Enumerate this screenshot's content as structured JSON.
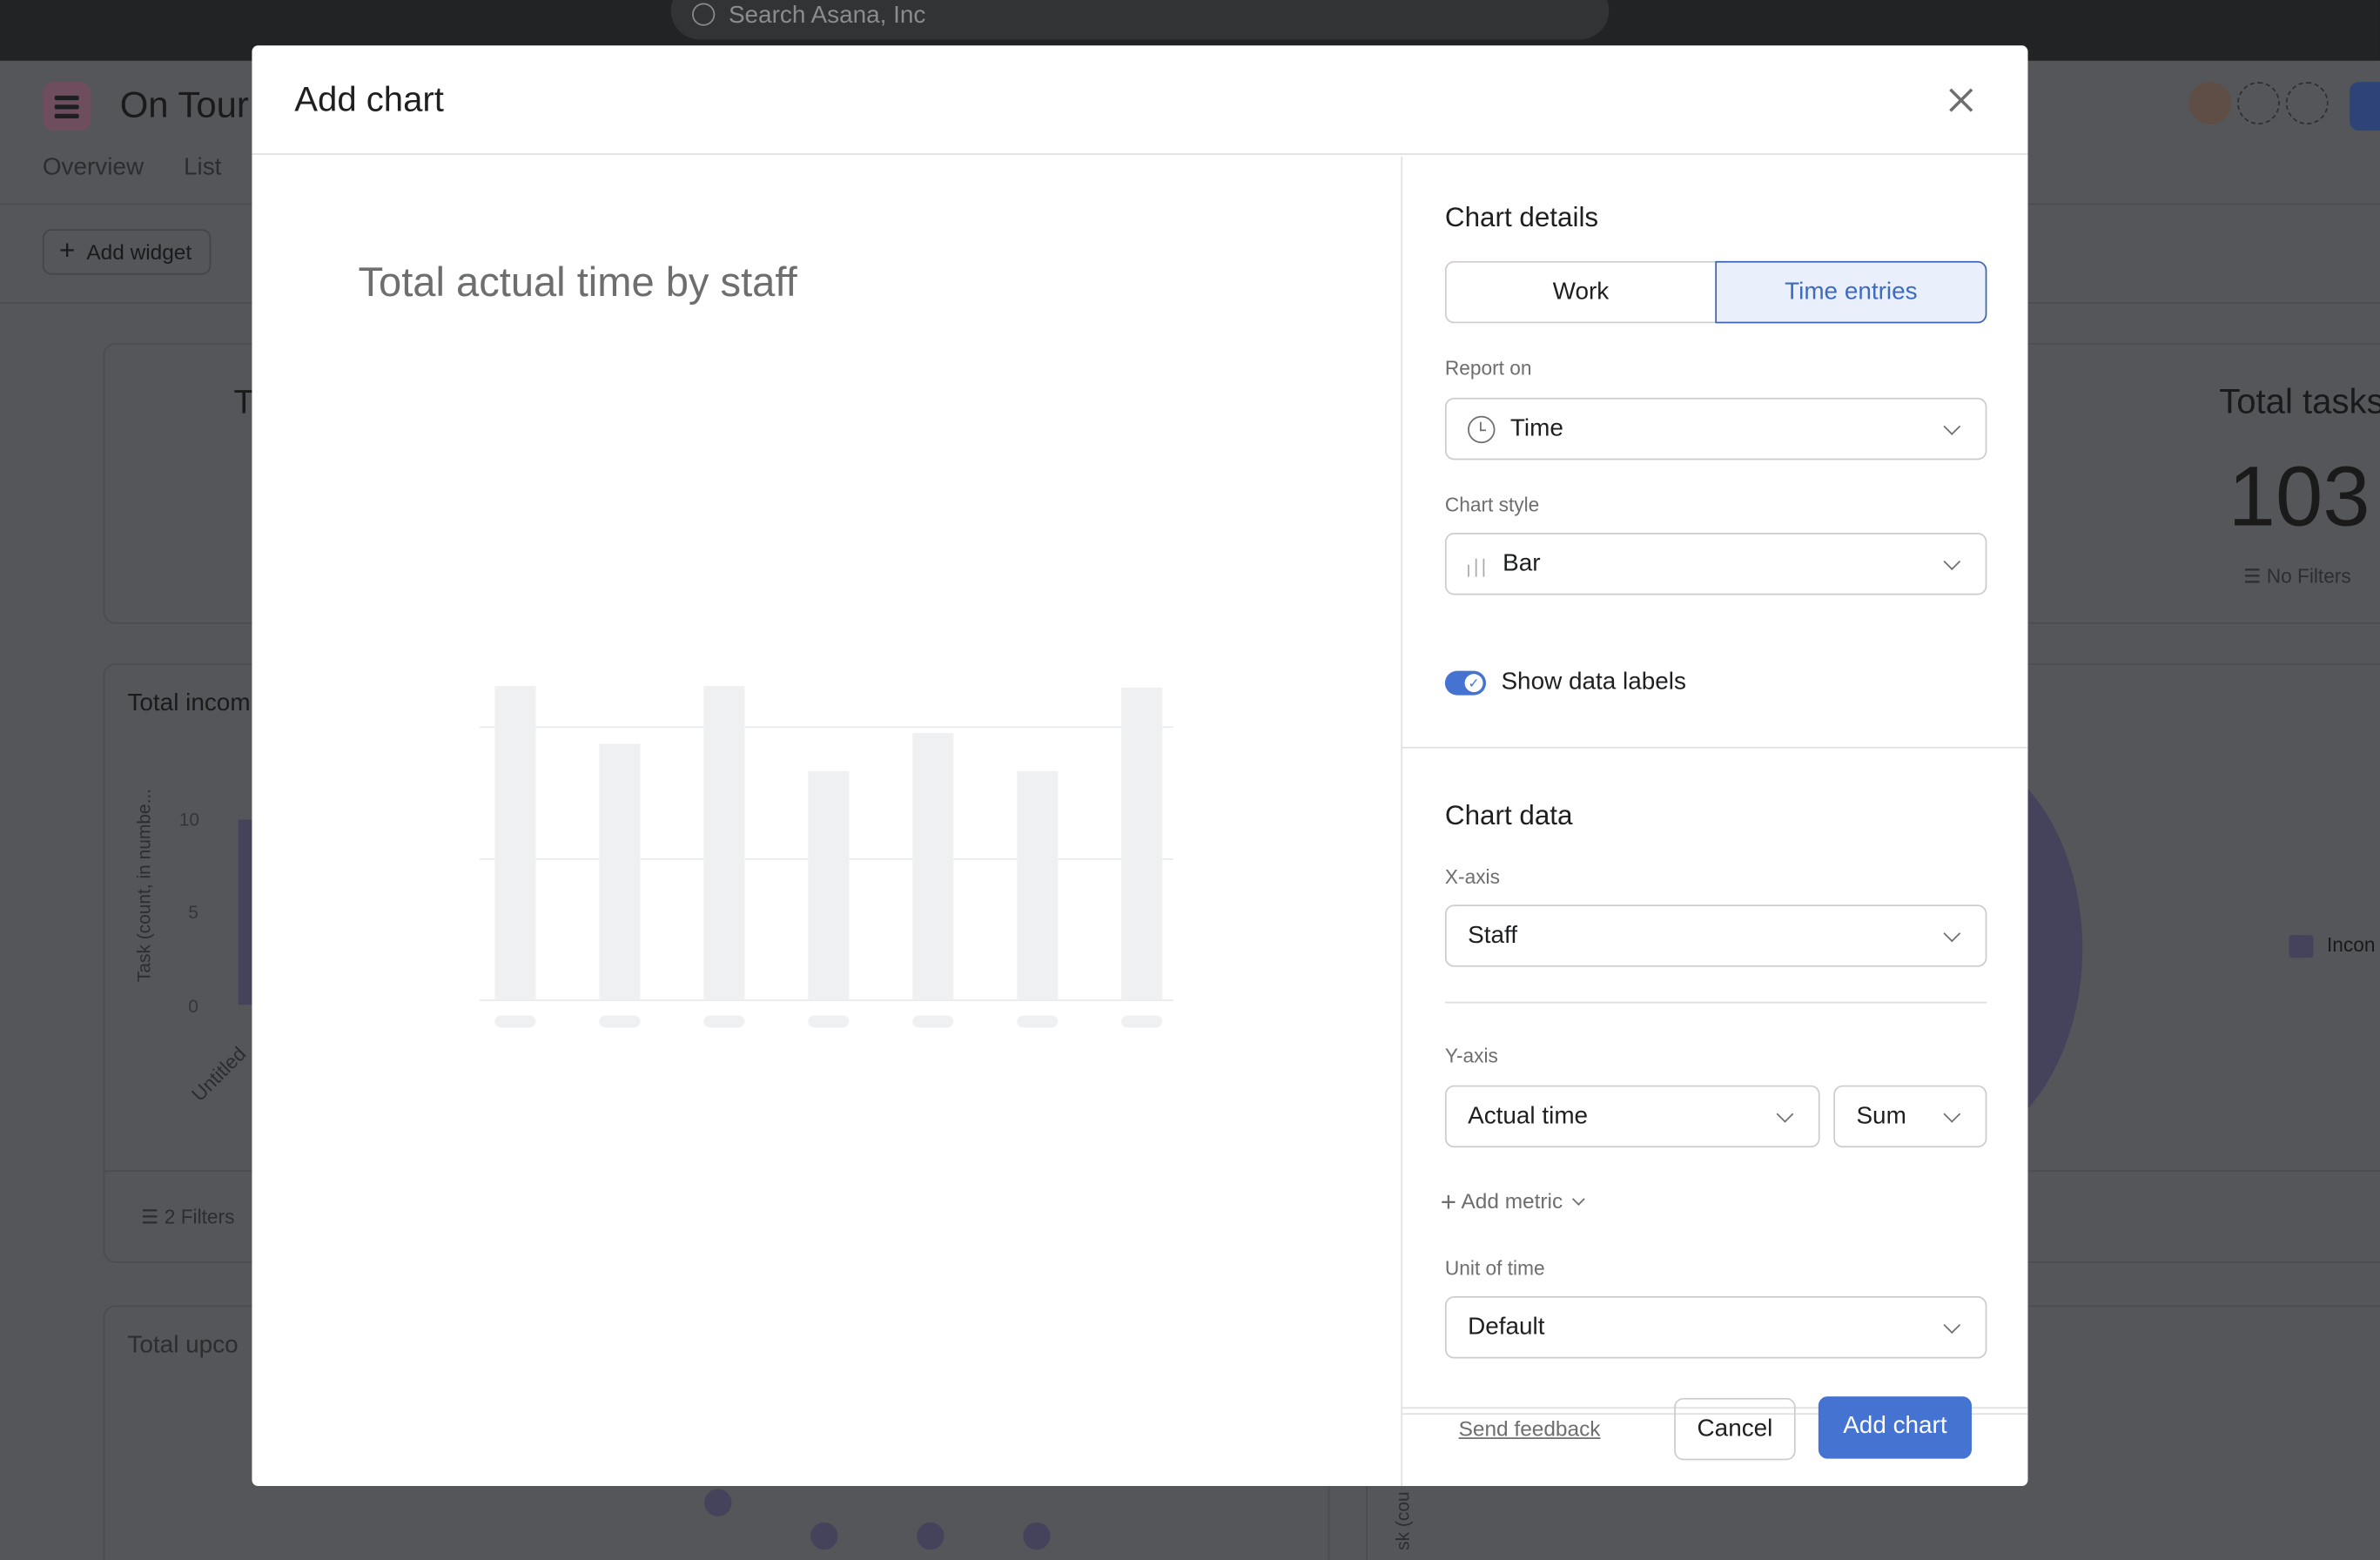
{
  "topbar": {
    "search_placeholder": "Search Asana, Inc"
  },
  "project": {
    "title": "On Tour:",
    "tabs": [
      "Overview",
      "List"
    ],
    "add_widget_label": "Add widget",
    "cards": {
      "card1_title": "T",
      "total_tasks_title": "Total tasks",
      "total_tasks_value": "103",
      "total_tasks_filters": "No Filters",
      "income_title": "Total incom",
      "income_yaxis_label": "Task (count, in numbe...",
      "income_ticks": [
        "10",
        "5",
        "0"
      ],
      "income_xlabel": "Untitled",
      "income_filters": "2 Filters",
      "income_legend": "Incon",
      "upcoming_title": "Total upco",
      "partial_axis_label": "sk (cou"
    }
  },
  "modal": {
    "title": "Add chart",
    "preview_title": "Total actual time by staff",
    "details": {
      "heading": "Chart details",
      "source_options": [
        "Work",
        "Time entries"
      ],
      "selected_source": "Time entries",
      "report_on_label": "Report on",
      "report_on_value": "Time",
      "chart_style_label": "Chart style",
      "chart_style_value": "Bar",
      "show_labels_label": "Show data labels",
      "show_labels_on": true
    },
    "data": {
      "heading": "Chart data",
      "x_axis_label": "X-axis",
      "x_axis_value": "Staff",
      "y_axis_label": "Y-axis",
      "y_axis_metric": "Actual time",
      "y_axis_aggregate": "Sum",
      "add_metric_label": "Add metric",
      "unit_label": "Unit of time",
      "unit_value": "Default"
    },
    "footer": {
      "feedback": "Send feedback",
      "cancel": "Cancel",
      "submit": "Add chart"
    }
  },
  "colors": {
    "accent": "#4573d2",
    "toggle": "#4573d2",
    "selected_segment_bg": "#eaf0fb",
    "chart_placeholder": "#eef0f2"
  }
}
